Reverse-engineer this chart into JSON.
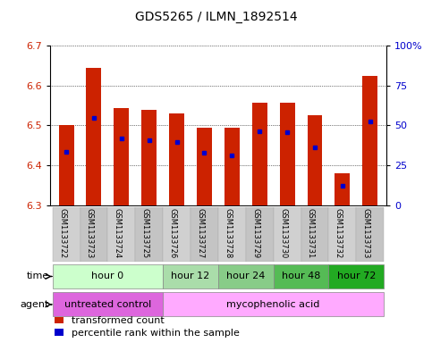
{
  "title": "GDS5265 / ILMN_1892514",
  "samples": [
    "GSM1133722",
    "GSM1133723",
    "GSM1133724",
    "GSM1133725",
    "GSM1133726",
    "GSM1133727",
    "GSM1133728",
    "GSM1133729",
    "GSM1133730",
    "GSM1133731",
    "GSM1133732",
    "GSM1133733"
  ],
  "bar_top": [
    6.5,
    6.645,
    6.543,
    6.54,
    6.53,
    6.495,
    6.495,
    6.558,
    6.558,
    6.525,
    6.38,
    6.625
  ],
  "bar_bottom": 6.3,
  "percentile_values": [
    6.435,
    6.52,
    6.468,
    6.464,
    6.458,
    6.432,
    6.425,
    6.485,
    6.484,
    6.446,
    6.35,
    6.51
  ],
  "ylim": [
    6.3,
    6.7
  ],
  "y2lim": [
    0,
    100
  ],
  "yticks": [
    6.3,
    6.4,
    6.5,
    6.6,
    6.7
  ],
  "y2ticks": [
    0,
    25,
    50,
    75,
    100
  ],
  "y2ticklabels": [
    "0",
    "25",
    "50",
    "75",
    "100%"
  ],
  "bar_color": "#cc2200",
  "percentile_color": "#0000cc",
  "bar_width": 0.55,
  "time_groups": [
    {
      "label": "hour 0",
      "cols": [
        0,
        1,
        2,
        3
      ],
      "color": "#ccffcc"
    },
    {
      "label": "hour 12",
      "cols": [
        4,
        5
      ],
      "color": "#aaddaa"
    },
    {
      "label": "hour 24",
      "cols": [
        6,
        7
      ],
      "color": "#88cc88"
    },
    {
      "label": "hour 48",
      "cols": [
        8,
        9
      ],
      "color": "#55bb55"
    },
    {
      "label": "hour 72",
      "cols": [
        10,
        11
      ],
      "color": "#22aa22"
    }
  ],
  "agent_groups": [
    {
      "label": "untreated control",
      "cols": [
        0,
        1,
        2,
        3
      ],
      "color": "#dd66dd"
    },
    {
      "label": "mycophenolic acid",
      "cols": [
        4,
        5,
        6,
        7,
        8,
        9,
        10,
        11
      ],
      "color": "#ffaaff"
    }
  ],
  "tick_fontsize": 8,
  "title_fontsize": 10,
  "row_label_fontsize": 8,
  "legend_fontsize": 8,
  "sample_fontsize": 6
}
